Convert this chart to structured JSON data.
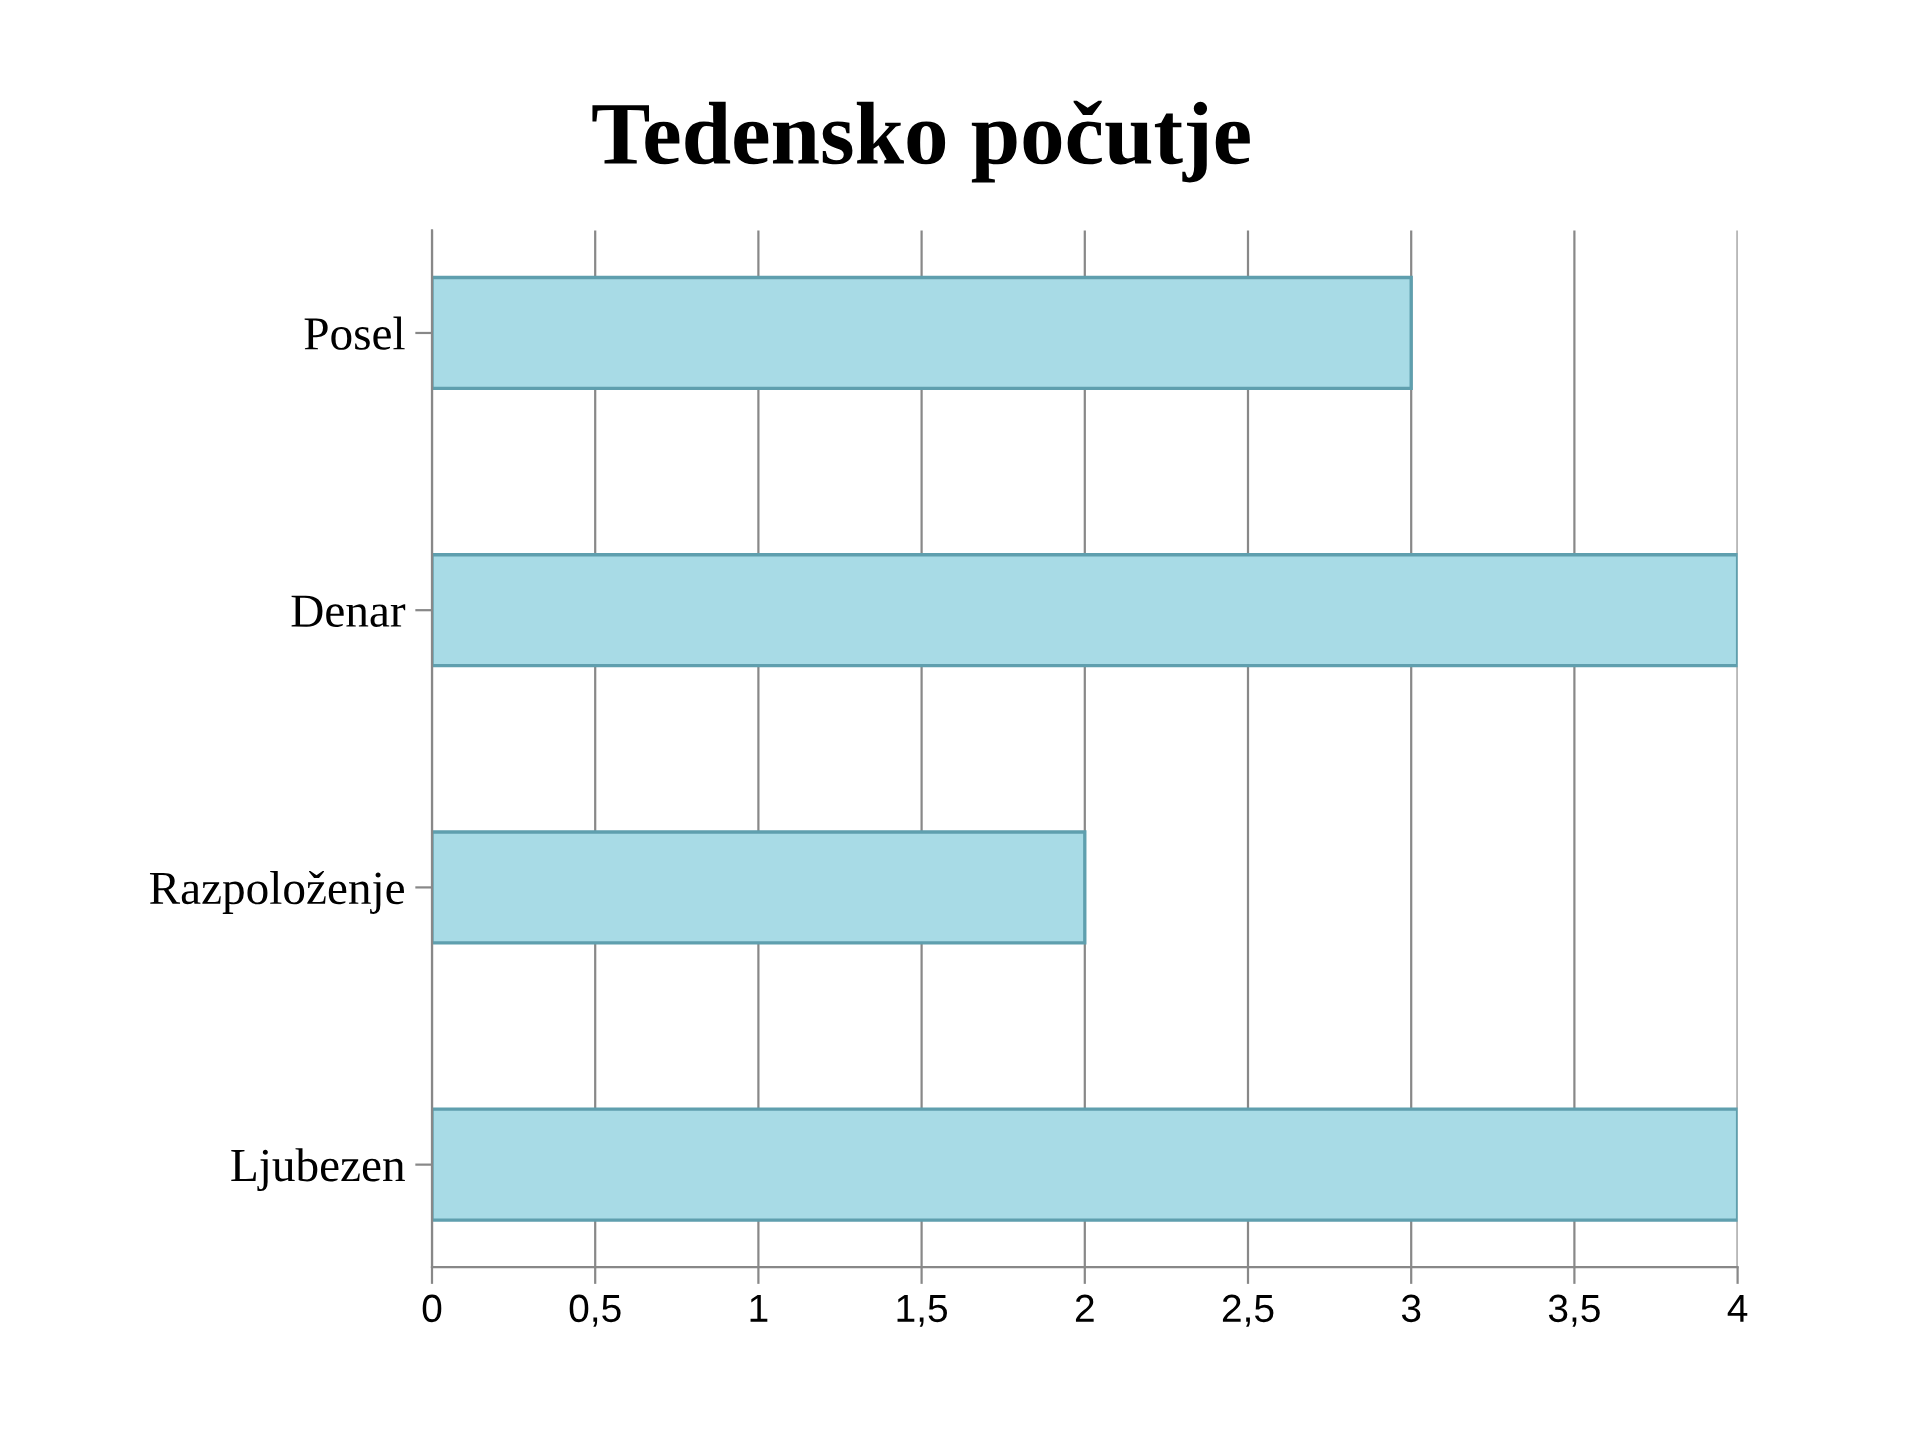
{
  "chart_data": {
    "type": "bar",
    "orientation": "horizontal",
    "title": "Tedensko počutje",
    "categories": [
      "Posel",
      "Denar",
      "Razpoloženje",
      "Ljubezen"
    ],
    "values": [
      3,
      4,
      2,
      4
    ],
    "color": "#a8dbe6",
    "xlim": [
      0,
      4
    ],
    "xticks": [
      0,
      {
        "value": 0.5,
        "label": "0,5"
      },
      1,
      {
        "value": 1.5,
        "label": "1,5"
      },
      2,
      {
        "value": 2.5,
        "label": "2,5"
      },
      3,
      {
        "value": 3.5,
        "label": "3,5"
      },
      4
    ],
    "grid": "x"
  }
}
